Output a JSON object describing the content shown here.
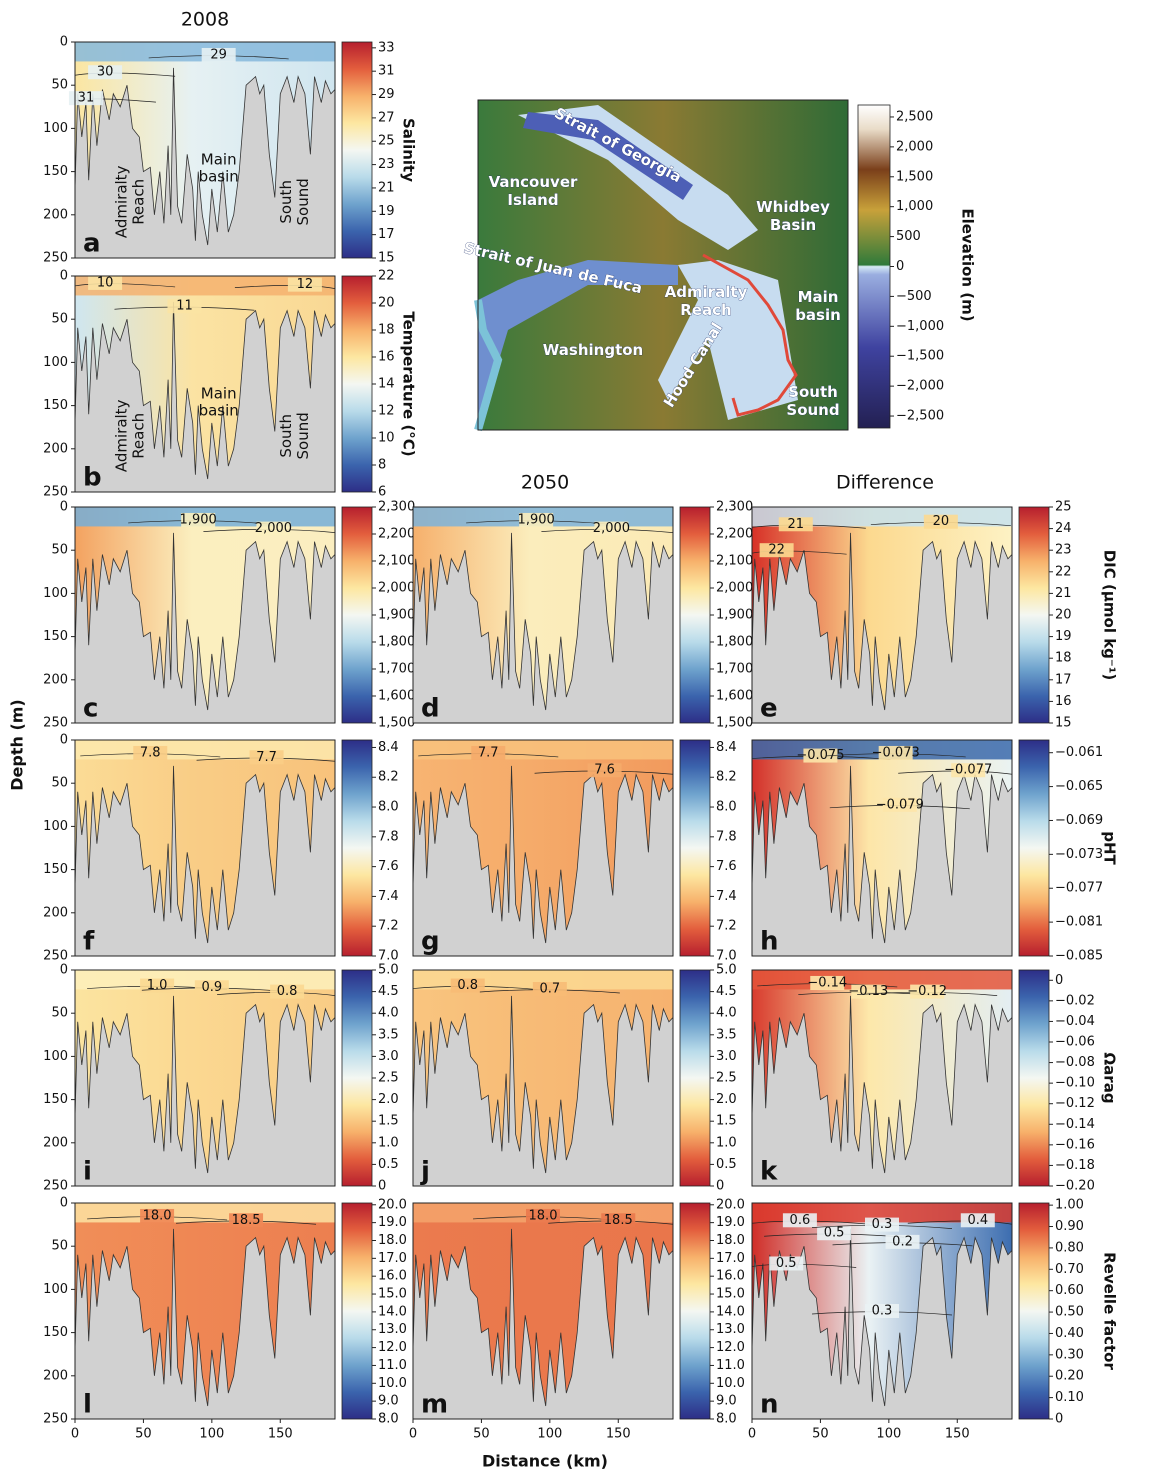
{
  "figure": {
    "column_titles": [
      "2008",
      "2050",
      "Difference"
    ],
    "y_axis_label": "Depth (m)",
    "x_axis_label": "Distance (km)",
    "colormap": [
      "#2d2e87",
      "#3b64ad",
      "#6fa3cd",
      "#b9dbea",
      "#f4f7f2",
      "#fde7a1",
      "#f7b16b",
      "#e35e3d",
      "#b61f2e"
    ]
  },
  "chart_data": [
    {
      "type": "contour",
      "panel": "a",
      "xlim": [
        0,
        190
      ],
      "ylim": [
        250,
        0
      ],
      "yticks": [
        0,
        50,
        100,
        150,
        200,
        250
      ],
      "clim": [
        15,
        33.5
      ],
      "cticks": [
        15,
        17,
        19,
        21,
        23,
        25,
        27,
        29,
        31,
        33
      ],
      "colormap_reversed": false,
      "colorbar_label": "Salinity",
      "fill": {
        "left": "#fbe6a2",
        "center": "#e6f1f3",
        "right": "#cfe5ef",
        "surface": "#86b9dc"
      },
      "contour_labels": [
        "29",
        "30",
        "31"
      ],
      "annotations": [
        [
          "Admiralty",
          "Reach"
        ],
        [
          "Main",
          "basin"
        ],
        [
          "South",
          "Sound"
        ]
      ]
    },
    {
      "type": "contour",
      "panel": "b",
      "xlim": [
        0,
        190
      ],
      "ylim": [
        250,
        0
      ],
      "yticks": [
        0,
        50,
        100,
        150,
        200,
        250
      ],
      "clim": [
        6,
        22
      ],
      "cticks": [
        6,
        8,
        10,
        12,
        14,
        16,
        18,
        20,
        22
      ],
      "colormap_reversed": false,
      "colorbar_label": "Temperature (°C)",
      "fill": {
        "left": "#cfe6f0",
        "center": "#fbe3a3",
        "right": "#f9d894",
        "surface": "#f4b26f"
      },
      "contour_labels": [
        "10",
        "11",
        "12"
      ],
      "annotations": [
        [
          "Admiralty",
          "Reach"
        ],
        [
          "Main",
          "basin"
        ],
        [
          "South",
          "Sound"
        ]
      ]
    },
    {
      "type": "contour",
      "panel": "c",
      "xlim": [
        0,
        190
      ],
      "ylim": [
        250,
        0
      ],
      "yticks": [
        0,
        50,
        100,
        150,
        200,
        250
      ],
      "clim": [
        1500,
        2300
      ],
      "cticks": [
        {
          "value": 1500,
          "label": "1,500"
        },
        {
          "value": 1600,
          "label": "1,600"
        },
        {
          "value": 1700,
          "label": "1,700"
        },
        {
          "value": 1800,
          "label": "1,800"
        },
        {
          "value": 1900,
          "label": "1,900"
        },
        {
          "value": 2000,
          "label": "2,000"
        },
        {
          "value": 2100,
          "label": "2,100"
        },
        {
          "value": 2200,
          "label": "2,200"
        },
        {
          "value": 2300,
          "label": "2,300"
        }
      ],
      "colormap_reversed": false,
      "fill": {
        "left": "#f3a260",
        "center": "#fbefbf",
        "right": "#fbeec0",
        "surface": "#74aed8"
      },
      "contour_labels": [
        "1,900",
        "2,000"
      ]
    },
    {
      "type": "contour",
      "panel": "d",
      "xlim": [
        0,
        190
      ],
      "ylim": [
        250,
        0
      ],
      "clim": [
        1500,
        2300
      ],
      "cticks": [
        {
          "value": 1500,
          "label": "1,500"
        },
        {
          "value": 1600,
          "label": "1,600"
        },
        {
          "value": 1700,
          "label": "1,700"
        },
        {
          "value": 1800,
          "label": "1,800"
        },
        {
          "value": 1900,
          "label": "1,900"
        },
        {
          "value": 2000,
          "label": "2,000"
        },
        {
          "value": 2100,
          "label": "2,100"
        },
        {
          "value": 2200,
          "label": "2,200"
        },
        {
          "value": 2300,
          "label": "2,300"
        }
      ],
      "colormap_reversed": false,
      "fill": {
        "left": "#f6b06c",
        "center": "#fbedbc",
        "right": "#fbeab5",
        "surface": "#7db3db"
      },
      "contour_labels": [
        "1,900",
        "2,000"
      ]
    },
    {
      "type": "contour",
      "panel": "e",
      "xlim": [
        0,
        190
      ],
      "ylim": [
        250,
        0
      ],
      "clim": [
        15,
        25
      ],
      "cticks": [
        15,
        16,
        17,
        18,
        19,
        20,
        21,
        22,
        23,
        24,
        25
      ],
      "colormap_reversed": false,
      "colorbar_label": "DIC (µmol kg⁻¹)",
      "fill": {
        "left": "#d73027",
        "center": "#fcd98f",
        "right": "#fdf2c4",
        "surface": "#c7e2ee"
      },
      "contour_labels": [
        "21",
        "22",
        "20"
      ]
    },
    {
      "type": "contour",
      "panel": "f",
      "xlim": [
        0,
        190
      ],
      "ylim": [
        250,
        0
      ],
      "yticks": [
        0,
        50,
        100,
        150,
        200,
        250
      ],
      "clim": [
        7.0,
        8.45
      ],
      "cticks": [
        {
          "value": 7,
          "label": "7.0"
        },
        7.2,
        7.4,
        7.6,
        7.8,
        {
          "value": 8,
          "label": "8.0"
        },
        8.2,
        8.4
      ],
      "colormap_reversed": true,
      "fill": {
        "left": "#fbdc96",
        "center": "#f9cd86",
        "right": "#f8c27b",
        "surface": "#fde9ae"
      },
      "contour_labels": [
        "7.8",
        "7.7"
      ]
    },
    {
      "type": "contour",
      "panel": "g",
      "xlim": [
        0,
        190
      ],
      "ylim": [
        250,
        0
      ],
      "clim": [
        7.0,
        8.45
      ],
      "cticks": [
        {
          "value": 7,
          "label": "7.0"
        },
        7.2,
        7.4,
        7.6,
        7.8,
        {
          "value": 8,
          "label": "8.0"
        },
        8.2,
        8.4
      ],
      "colormap_reversed": true,
      "fill": {
        "left": "#f7b472",
        "center": "#f5ab6a",
        "right": "#f29a5d",
        "surface": "#f8c27d"
      },
      "contour_labels": [
        "7.7",
        "7.6"
      ]
    },
    {
      "type": "contour",
      "panel": "h",
      "xlim": [
        0,
        190
      ],
      "ylim": [
        250,
        0
      ],
      "clim": [
        -0.085,
        -0.0595
      ],
      "cticks": [
        {
          "value": -0.085,
          "label": "−0.085"
        },
        {
          "value": -0.081,
          "label": "−0.081"
        },
        {
          "value": -0.077,
          "label": "−0.077"
        },
        {
          "value": -0.073,
          "label": "−0.073"
        },
        {
          "value": -0.069,
          "label": "−0.069"
        },
        {
          "value": -0.065,
          "label": "−0.065"
        },
        {
          "value": -0.061,
          "label": "−0.061"
        }
      ],
      "colormap_reversed": true,
      "colorbar_label": "pHT",
      "fill": {
        "left": "#d3302a",
        "center": "#fde6a8",
        "right": "#eaf3f3",
        "surface": "#3a68ab"
      },
      "contour_labels": [
        "−0.075",
        "−0.073",
        "−0.077",
        "−0.079"
      ]
    },
    {
      "type": "contour",
      "panel": "i",
      "xlim": [
        0,
        190
      ],
      "ylim": [
        250,
        0
      ],
      "yticks": [
        0,
        50,
        100,
        150,
        200,
        250
      ],
      "clim": [
        0,
        5
      ],
      "cticks": [
        0,
        0.5,
        {
          "value": 1,
          "label": "1.0"
        },
        1.5,
        {
          "value": 2,
          "label": "2.0"
        },
        2.5,
        {
          "value": 3,
          "label": "3.0"
        },
        3.5,
        {
          "value": 4,
          "label": "4.0"
        },
        4.5,
        {
          "value": 5,
          "label": "5.0"
        }
      ],
      "colormap_reversed": true,
      "fill": {
        "left": "#fbe4a0",
        "center": "#fbd891",
        "right": "#f9cc85",
        "surface": "#fdf0bc"
      },
      "contour_labels": [
        "1.0",
        "0.9",
        "0.8"
      ]
    },
    {
      "type": "contour",
      "panel": "j",
      "xlim": [
        0,
        190
      ],
      "ylim": [
        250,
        0
      ],
      "clim": [
        0,
        5
      ],
      "cticks": [
        0,
        0.5,
        {
          "value": 1,
          "label": "1.0"
        },
        1.5,
        {
          "value": 2,
          "label": "2.0"
        },
        2.5,
        {
          "value": 3,
          "label": "3.0"
        },
        3.5,
        {
          "value": 4,
          "label": "4.0"
        },
        4.5,
        {
          "value": 5,
          "label": "5.0"
        }
      ],
      "colormap_reversed": true,
      "fill": {
        "left": "#f9c57f",
        "center": "#f7bb76",
        "right": "#f6b26f",
        "surface": "#fbd993"
      },
      "contour_labels": [
        "0.8",
        "0.7"
      ]
    },
    {
      "type": "contour",
      "panel": "k",
      "xlim": [
        0,
        190
      ],
      "ylim": [
        250,
        0
      ],
      "clim": [
        -0.2,
        0.01
      ],
      "cticks": [
        0,
        {
          "value": -0.02,
          "label": "−0.02"
        },
        {
          "value": -0.04,
          "label": "−0.04"
        },
        {
          "value": -0.06,
          "label": "−0.06"
        },
        {
          "value": -0.08,
          "label": "−0.08"
        },
        {
          "value": -0.1,
          "label": "−0.10"
        },
        {
          "value": -0.12,
          "label": "−0.12"
        },
        {
          "value": -0.14,
          "label": "−0.14"
        },
        {
          "value": -0.16,
          "label": "−0.16"
        },
        {
          "value": -0.18,
          "label": "−0.18"
        },
        {
          "value": -0.2,
          "label": "−0.20"
        }
      ],
      "colormap_reversed": true,
      "colorbar_label": "Ωarag",
      "fill": {
        "left": "#d83b2e",
        "center": "#fde8aa",
        "right": "#e3eef3",
        "surface": "#e4553a"
      },
      "contour_labels": [
        "−0.14",
        "−0.13",
        "−0.12"
      ]
    },
    {
      "type": "contour",
      "panel": "l",
      "xlim": [
        0,
        190
      ],
      "ylim": [
        250,
        0
      ],
      "yticks": [
        0,
        50,
        100,
        150,
        200,
        250
      ],
      "xticks": [
        0,
        50,
        100,
        150
      ],
      "clim": [
        8,
        20.1
      ],
      "cticks": [
        {
          "value": 8,
          "label": "8.0"
        },
        {
          "value": 9,
          "label": "9.0"
        },
        {
          "value": 10,
          "label": "10.0"
        },
        {
          "value": 11,
          "label": "11.0"
        },
        {
          "value": 12,
          "label": "12.0"
        },
        {
          "value": 13,
          "label": "13.0"
        },
        {
          "value": 14,
          "label": "14.0"
        },
        {
          "value": 15,
          "label": "15.0"
        },
        {
          "value": 16,
          "label": "16.0"
        },
        {
          "value": 17,
          "label": "17.0"
        },
        {
          "value": 18,
          "label": "18.0"
        },
        {
          "value": 19,
          "label": "19.0"
        },
        {
          "value": 20,
          "label": "20.0"
        }
      ],
      "colormap_reversed": false,
      "fill": {
        "left": "#f08e58",
        "center": "#ef8754",
        "right": "#ec7f50",
        "surface": "#fde3a2"
      },
      "contour_labels": [
        "18.0",
        "18.5"
      ]
    },
    {
      "type": "contour",
      "panel": "m",
      "xlim": [
        0,
        190
      ],
      "ylim": [
        250,
        0
      ],
      "xticks": [
        0,
        50,
        100,
        150
      ],
      "clim": [
        8,
        20.1
      ],
      "cticks": [
        {
          "value": 8,
          "label": "8.0"
        },
        {
          "value": 9,
          "label": "9.0"
        },
        {
          "value": 10,
          "label": "10.0"
        },
        {
          "value": 11,
          "label": "11.0"
        },
        {
          "value": 12,
          "label": "12.0"
        },
        {
          "value": 13,
          "label": "13.0"
        },
        {
          "value": 14,
          "label": "14.0"
        },
        {
          "value": 15,
          "label": "15.0"
        },
        {
          "value": 16,
          "label": "16.0"
        },
        {
          "value": 17,
          "label": "17.0"
        },
        {
          "value": 18,
          "label": "18.0"
        },
        {
          "value": 19,
          "label": "19.0"
        },
        {
          "value": 20,
          "label": "20.0"
        }
      ],
      "colormap_reversed": false,
      "fill": {
        "left": "#eb7b4e",
        "center": "#ea784c",
        "right": "#e9764b",
        "surface": "#f4a56c"
      },
      "contour_labels": [
        "18.0",
        "18.5"
      ]
    },
    {
      "type": "contour",
      "panel": "n",
      "xlim": [
        0,
        190
      ],
      "ylim": [
        250,
        0
      ],
      "xticks": [
        0,
        50,
        100,
        150
      ],
      "clim": [
        0,
        1.01
      ],
      "cticks": [
        0,
        {
          "value": 0.1,
          "label": "0.10"
        },
        {
          "value": 0.2,
          "label": "0.20"
        },
        {
          "value": 0.3,
          "label": "0.30"
        },
        {
          "value": 0.4,
          "label": "0.40"
        },
        {
          "value": 0.5,
          "label": "0.50"
        },
        {
          "value": 0.6,
          "label": "0.60"
        },
        {
          "value": 0.7,
          "label": "0.70"
        },
        {
          "value": 0.8,
          "label": "0.80"
        },
        {
          "value": 0.9,
          "label": "0.90"
        },
        {
          "value": 1,
          "label": "1.00"
        }
      ],
      "colormap_reversed": false,
      "colorbar_label": "Revelle factor",
      "fill": {
        "left": "#d02d27",
        "center": "#eaf2f4",
        "right": "#3c6db0",
        "surface": "#dc3b2e"
      },
      "contour_labels": [
        "0.6",
        "0.5",
        "0.3",
        "0.2",
        "0.4",
        "0.5",
        "0.3"
      ]
    },
    {
      "type": "map",
      "clim": [
        -2700,
        2700
      ],
      "colorbar_label": "Elevation (m)",
      "cticks": [
        {
          "value": -2500,
          "label": "−2,500"
        },
        {
          "value": -2000,
          "label": "−2,000"
        },
        {
          "value": -1500,
          "label": "−1,500"
        },
        {
          "value": -1000,
          "label": "−1,000"
        },
        {
          "value": -500,
          "label": "−500"
        },
        0,
        500,
        {
          "value": 1000,
          "label": "1,000"
        },
        {
          "value": 1500,
          "label": "1,500"
        },
        {
          "value": 2000,
          "label": "2,000"
        },
        {
          "value": 2500,
          "label": "2,500"
        }
      ],
      "labels": [
        [
          "Strait of Georgia"
        ],
        [
          "Vancouver",
          "Island"
        ],
        [
          "Strait of Juan de Fuca"
        ],
        [
          "Whidbey",
          "Basin"
        ],
        [
          "Admiralty",
          "Reach"
        ],
        [
          "Main",
          "basin"
        ],
        [
          "Washington"
        ],
        [
          "Hood Canal"
        ],
        [
          "South",
          "Sound"
        ]
      ]
    }
  ]
}
